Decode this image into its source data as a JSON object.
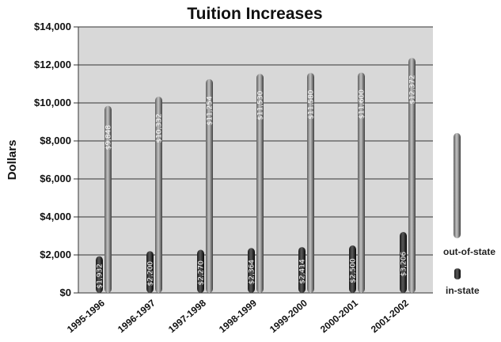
{
  "chart_data": {
    "type": "bar",
    "title": "Tuition Increases",
    "ylabel": "Dollars",
    "xlabel": "",
    "ylim": [
      0,
      14000
    ],
    "yticks": [
      0,
      2000,
      4000,
      6000,
      8000,
      10000,
      12000,
      14000
    ],
    "ytick_labels": [
      "$0",
      "$2,000",
      "$4,000",
      "$6,000",
      "$8,000",
      "$10,000",
      "$12,000",
      "$14,000"
    ],
    "categories": [
      "1995-1996",
      "1996-1997",
      "1997-1998",
      "1998-1999",
      "1999-2000",
      "2000-2001",
      "2001-2002"
    ],
    "series": [
      {
        "name": "in-state",
        "values": [
          1932,
          2200,
          2270,
          2364,
          2414,
          2500,
          3206
        ],
        "labels": [
          "$1,932",
          "$2,200",
          "$2,270",
          "$2,364",
          "$2,414",
          "$2,500",
          "$3,206"
        ],
        "color": "#111111"
      },
      {
        "name": "out-of-state",
        "values": [
          9848,
          10332,
          11254,
          11530,
          11580,
          11600,
          12372
        ],
        "labels": [
          "$9,848",
          "$10,332",
          "$11,254",
          "$11,530",
          "$11,580",
          "$11,600",
          "$12,372"
        ],
        "color": "#9a9a9a"
      }
    ],
    "legend_position": "right",
    "grid": true,
    "plot_background": "#d8d8d8"
  }
}
